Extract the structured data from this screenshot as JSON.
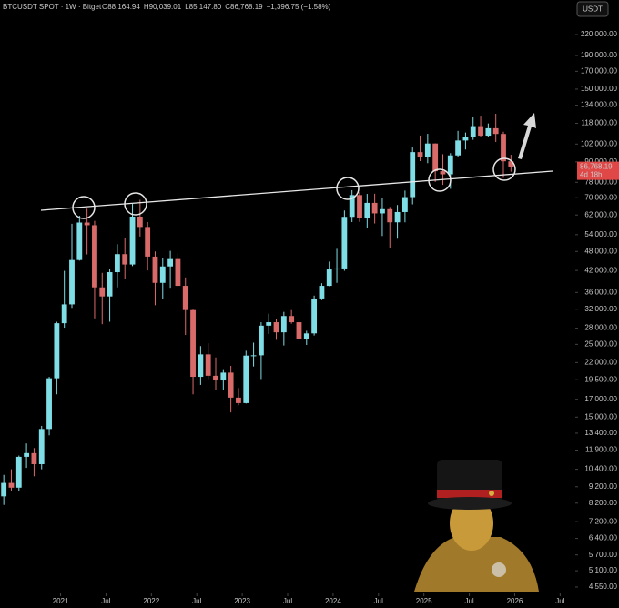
{
  "chart_data": {
    "type": "candlestick",
    "title": "BTCUSDT SPOT · 1W · Bitget",
    "ohlc_labels": [
      "O88,164.94",
      "H90,039.01",
      "L85,147.80",
      "C86,768.19",
      "−1,396.75 (−1.58%)"
    ],
    "currency": "USDT",
    "log_scale": true,
    "up_color": "#7fdde6",
    "down_color": "#d96a6a",
    "x": [
      "2020-05",
      "2020-06",
      "2020-07",
      "2020-08",
      "2020-09",
      "2020-10",
      "2020-11",
      "2020-12",
      "2021-01",
      "2021-02",
      "2021-03",
      "2021-04",
      "2021-05",
      "2021-06",
      "2021-07",
      "2021-08",
      "2021-09",
      "2021-10",
      "2021-11",
      "2021-12",
      "2022-01",
      "2022-02",
      "2022-03",
      "2022-04",
      "2022-05",
      "2022-06",
      "2022-07",
      "2022-08",
      "2022-09",
      "2022-10",
      "2022-11",
      "2022-12",
      "2023-01",
      "2023-02",
      "2023-03",
      "2023-04",
      "2023-05",
      "2023-06",
      "2023-07",
      "2023-08",
      "2023-09",
      "2023-10",
      "2023-11",
      "2023-12",
      "2024-01",
      "2024-02",
      "2024-03",
      "2024-04",
      "2024-05",
      "2024-06",
      "2024-07",
      "2024-08",
      "2024-09",
      "2024-10",
      "2024-11",
      "2024-12",
      "2025-01",
      "2025-02",
      "2025-03",
      "2025-04",
      "2025-05",
      "2025-06",
      "2025-07",
      "2025-08",
      "2025-09",
      "2025-10",
      "2025-11",
      "2025-12"
    ],
    "open": [
      8600,
      9450,
      9140,
      11350,
      11650,
      10780,
      13800,
      19700,
      29000,
      33100,
      45200,
      58800,
      57700,
      37300,
      35000,
      41500,
      47100,
      43800,
      61300,
      57000,
      46300,
      38500,
      43200,
      45500,
      37700,
      31800,
      19900,
      23300,
      20050,
      19400,
      20500,
      17200,
      16550,
      23100,
      23150,
      28500,
      29200,
      27200,
      30500,
      29200,
      25900,
      27000,
      34500,
      37700,
      42300,
      42600,
      61200,
      71300,
      60700,
      67500,
      62700,
      64600,
      58900,
      63300,
      70300,
      96400,
      93400,
      102400,
      84300,
      82500,
      94200,
      104600,
      107100,
      115700,
      108200,
      114000,
      109500,
      90400
    ],
    "high": [
      10000,
      10400,
      11450,
      12470,
      12070,
      14100,
      19900,
      29300,
      41900,
      58300,
      61700,
      64800,
      59500,
      41300,
      42400,
      50500,
      52900,
      67000,
      69000,
      59000,
      48000,
      45800,
      48200,
      47400,
      40000,
      31900,
      24700,
      25200,
      22800,
      21000,
      21500,
      18400,
      23900,
      25300,
      29200,
      31000,
      29800,
      31400,
      31800,
      30200,
      27500,
      35200,
      38400,
      44700,
      48900,
      64000,
      73800,
      72800,
      71900,
      72000,
      70000,
      65600,
      66500,
      73600,
      99600,
      108300,
      109600,
      102500,
      95000,
      95700,
      111900,
      110600,
      123200,
      124500,
      117900,
      126200,
      111200,
      94600
    ],
    "low": [
      8100,
      8900,
      8900,
      10500,
      9900,
      10400,
      13200,
      17600,
      28100,
      32300,
      45000,
      47000,
      30000,
      28800,
      29300,
      37300,
      39600,
      43300,
      53300,
      42000,
      32900,
      34300,
      37200,
      37600,
      26700,
      17600,
      18800,
      19600,
      18200,
      18200,
      15500,
      16300,
      16500,
      21400,
      19600,
      26900,
      25800,
      24800,
      28900,
      25400,
      24900,
      26600,
      34100,
      37600,
      38500,
      41900,
      59000,
      59100,
      56500,
      58400,
      53500,
      49000,
      52500,
      58900,
      66800,
      90500,
      89200,
      78200,
      76600,
      74500,
      93400,
      98200,
      105100,
      107300,
      107300,
      103500,
      80500,
      84000
    ],
    "close": [
      9450,
      9140,
      11350,
      11650,
      10780,
      13800,
      19700,
      29000,
      33100,
      45200,
      58800,
      57700,
      37300,
      35000,
      41500,
      47100,
      43800,
      61300,
      57000,
      46300,
      38500,
      43200,
      45500,
      37700,
      31800,
      19900,
      23300,
      20050,
      19400,
      20500,
      17200,
      16550,
      23100,
      23150,
      28500,
      29200,
      27200,
      30500,
      29200,
      25900,
      27000,
      34500,
      37700,
      42300,
      42600,
      61200,
      71300,
      60700,
      67500,
      62700,
      64600,
      58900,
      63300,
      70300,
      96400,
      93400,
      102400,
      84300,
      82500,
      94200,
      104600,
      107100,
      115700,
      108200,
      114000,
      109500,
      90400,
      86768.19
    ],
    "last_price": {
      "value": 86768.19,
      "label": "86,768.19"
    },
    "countdown": "4d 18h",
    "xlim": [
      "2020-05",
      "2026-09"
    ],
    "xticks": [
      {
        "value": "2021-01",
        "label": "2021"
      },
      {
        "value": "2021-07",
        "label": "Jul"
      },
      {
        "value": "2022-01",
        "label": "2022"
      },
      {
        "value": "2022-07",
        "label": "Jul"
      },
      {
        "value": "2023-01",
        "label": "2023"
      },
      {
        "value": "2023-07",
        "label": "Jul"
      },
      {
        "value": "2024-01",
        "label": "2024"
      },
      {
        "value": "2024-07",
        "label": "Jul"
      },
      {
        "value": "2025-01",
        "label": "2025"
      },
      {
        "value": "2025-07",
        "label": "Jul"
      },
      {
        "value": "2026-01",
        "label": "2026"
      },
      {
        "value": "2026-07",
        "label": "Jul"
      }
    ],
    "ylim": [
      4350,
      280500
    ],
    "yticks": [
      {
        "value": 220000,
        "label": "220,000.00"
      },
      {
        "value": 190000,
        "label": "190,000.00"
      },
      {
        "value": 170000,
        "label": "170,000.00"
      },
      {
        "value": 150000,
        "label": "150,000.00"
      },
      {
        "value": 134000,
        "label": "134,000.00"
      },
      {
        "value": 118000,
        "label": "118,000.00"
      },
      {
        "value": 102000,
        "label": "102,000.00"
      },
      {
        "value": 90000,
        "label": "90,000.00"
      },
      {
        "value": 78000,
        "label": "78,000.00"
      },
      {
        "value": 70000,
        "label": "70,000.00"
      },
      {
        "value": 62000,
        "label": "62,000.00"
      },
      {
        "value": 54000,
        "label": "54,000.00"
      },
      {
        "value": 48000,
        "label": "48,000.00"
      },
      {
        "value": 42000,
        "label": "42,000.00"
      },
      {
        "value": 36000,
        "label": "36,000.00"
      },
      {
        "value": 32000,
        "label": "32,000.00"
      },
      {
        "value": 28000,
        "label": "28,000.00"
      },
      {
        "value": 25000,
        "label": "25,000.00"
      },
      {
        "value": 22000,
        "label": "22,000.00"
      },
      {
        "value": 19500,
        "label": "19,500.00"
      },
      {
        "value": 17000,
        "label": "17,000.00"
      },
      {
        "value": 15000,
        "label": "15,000.00"
      },
      {
        "value": 13400,
        "label": "13,400.00"
      },
      {
        "value": 11900,
        "label": "11,900.00"
      },
      {
        "value": 10400,
        "label": "10,400.00"
      },
      {
        "value": 9200,
        "label": "9,200.00"
      },
      {
        "value": 8200,
        "label": "8,200.00"
      },
      {
        "value": 7200,
        "label": "7,200.00"
      },
      {
        "value": 6400,
        "label": "6,400.00"
      },
      {
        "value": 5700,
        "label": "5,700.00"
      },
      {
        "value": 5100,
        "label": "5,100.00"
      },
      {
        "value": 4550,
        "label": "4,550.00"
      }
    ]
  }
}
